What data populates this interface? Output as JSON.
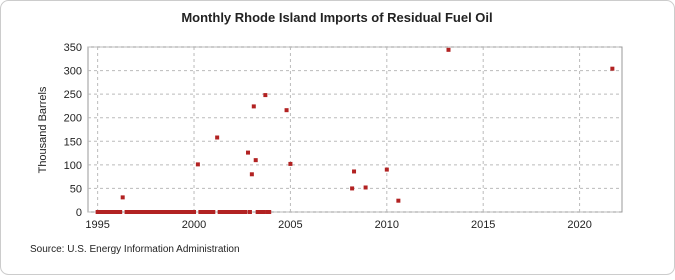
{
  "chart_data": {
    "type": "scatter",
    "title": "Monthly Rhode Island Imports of Residual Fuel Oil",
    "y_label": "Thousand Barrels",
    "source": "Source: U.S. Energy Information Administration",
    "xlim": [
      1994.5,
      2022.2
    ],
    "xticks": [
      1995,
      2000,
      2005,
      2010,
      2015,
      2020
    ],
    "ylim": [
      0,
      350
    ],
    "yticks": [
      0,
      50,
      100,
      150,
      200,
      250,
      300,
      350
    ],
    "grid": true,
    "series": [
      {
        "color": "#b22222",
        "x": [
          1995,
          1995.17,
          1995.33,
          1995.5,
          1995.67,
          1995.83,
          1996,
          1996.17,
          1996.3,
          1996.5,
          1996.67,
          1996.83,
          1997,
          1997.17,
          1997.33,
          1997.5,
          1997.67,
          1997.83,
          1998,
          1998.17,
          1998.33,
          1998.5,
          1998.67,
          1998.83,
          1999,
          1999.17,
          1999.33,
          1999.5,
          1999.67,
          1999.83,
          2000,
          2000.2,
          2000.33,
          2000.5,
          2000.67,
          2000.83,
          2001,
          2001.2,
          2001.33,
          2001.5,
          2001.67,
          2001.83,
          2002,
          2002.17,
          2002.33,
          2002.5,
          2002.67,
          2002.8,
          2002.9,
          2003,
          2003.1,
          2003.2,
          2003.3,
          2003.45,
          2003.6,
          2003.7,
          2003.8,
          2003.9,
          2004.8,
          2005,
          2008.2,
          2008.3,
          2008.9,
          2010,
          2010.6,
          2013.2,
          2021.7
        ],
        "values": [
          0,
          0,
          0,
          0,
          0,
          0,
          0,
          0,
          31,
          0,
          0,
          0,
          0,
          0,
          0,
          0,
          0,
          0,
          0,
          0,
          0,
          0,
          0,
          0,
          0,
          0,
          0,
          0,
          0,
          0,
          0,
          101,
          0,
          0,
          0,
          0,
          0,
          158,
          0,
          0,
          0,
          0,
          0,
          0,
          0,
          0,
          0,
          126,
          0,
          80,
          224,
          110,
          0,
          0,
          0,
          248,
          0,
          0,
          216,
          102,
          50,
          86,
          52,
          90,
          24,
          344,
          304
        ]
      }
    ]
  }
}
